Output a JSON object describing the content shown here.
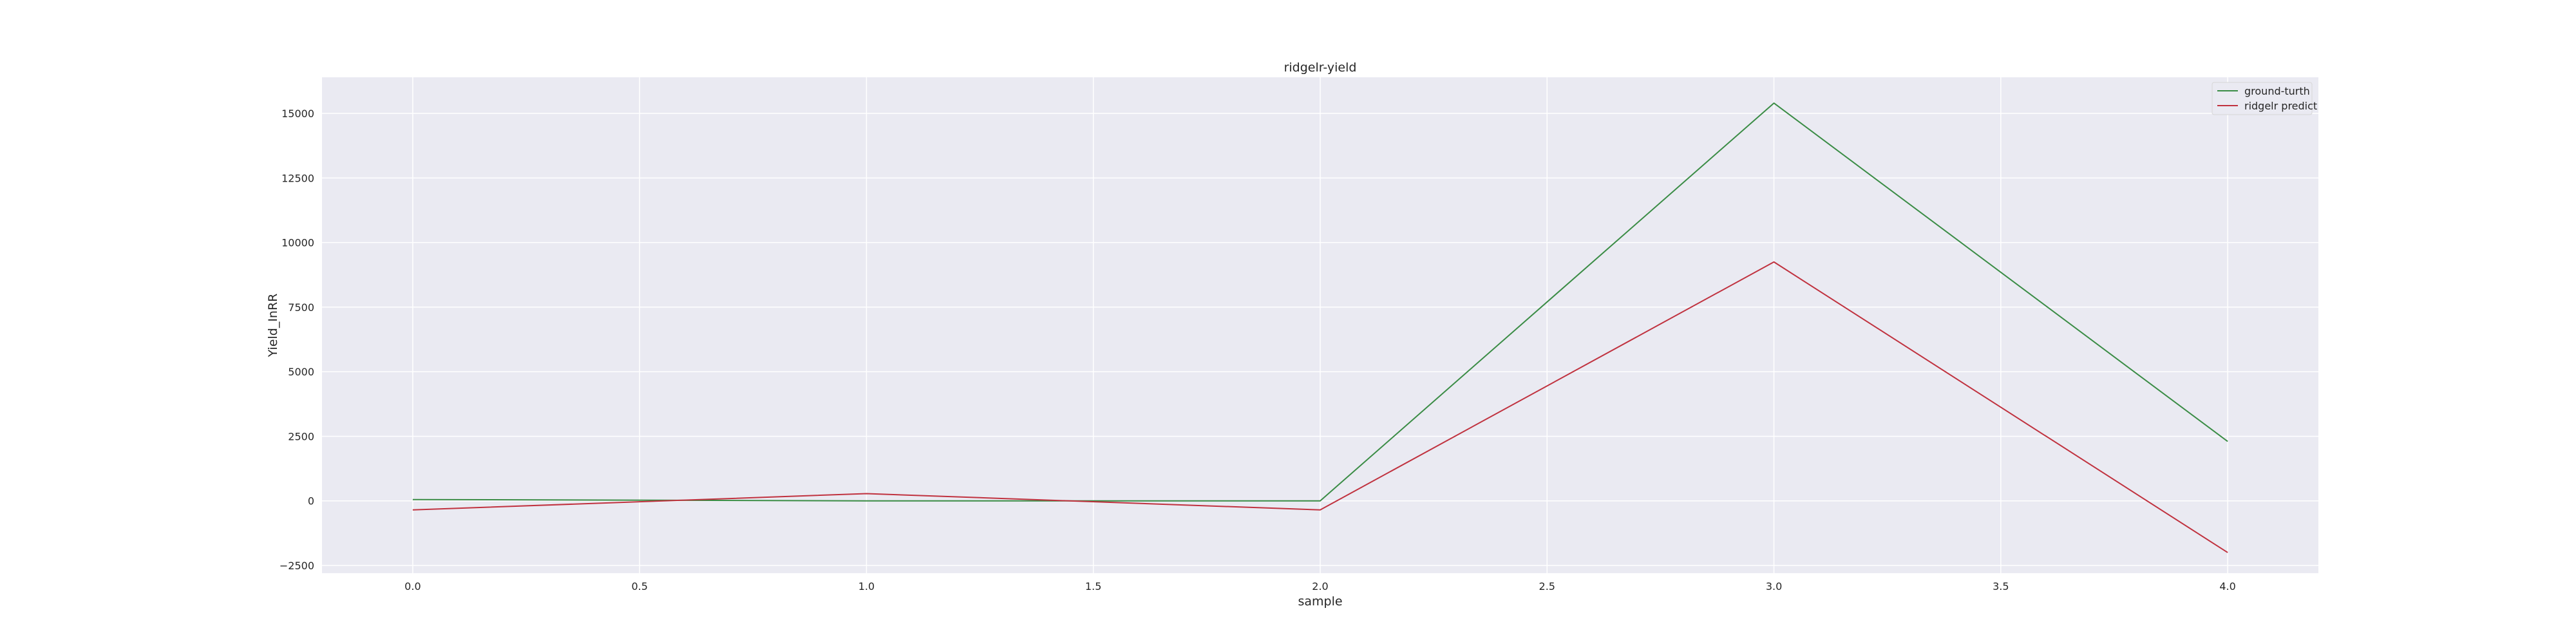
{
  "chart_data": {
    "type": "line",
    "title": "ridgelr-yield",
    "xlabel": "sample",
    "ylabel": "Yield_InRR",
    "xlim": [
      -0.2,
      4.2
    ],
    "ylim": [
      -2800,
      16400
    ],
    "xticks": [
      0.0,
      0.5,
      1.0,
      1.5,
      2.0,
      2.5,
      3.0,
      3.5,
      4.0
    ],
    "xtick_labels": [
      "0.0",
      "0.5",
      "1.0",
      "1.5",
      "2.0",
      "2.5",
      "3.0",
      "3.5",
      "4.0"
    ],
    "yticks": [
      -2500,
      0,
      2500,
      5000,
      7500,
      10000,
      12500,
      15000
    ],
    "ytick_labels": [
      "−2500",
      "0",
      "2500",
      "5000",
      "7500",
      "10000",
      "12500",
      "15000"
    ],
    "grid": true,
    "legend_position": "top-right",
    "x": [
      0,
      1,
      2,
      3,
      4
    ],
    "series": [
      {
        "name": "ground-turth",
        "color": "#3a8c45",
        "values": [
          50,
          0,
          0,
          15400,
          2300
        ]
      },
      {
        "name": "ridgelr predict",
        "color": "#c0323f",
        "values": [
          -350,
          280,
          -350,
          9250,
          -2000
        ]
      }
    ]
  }
}
